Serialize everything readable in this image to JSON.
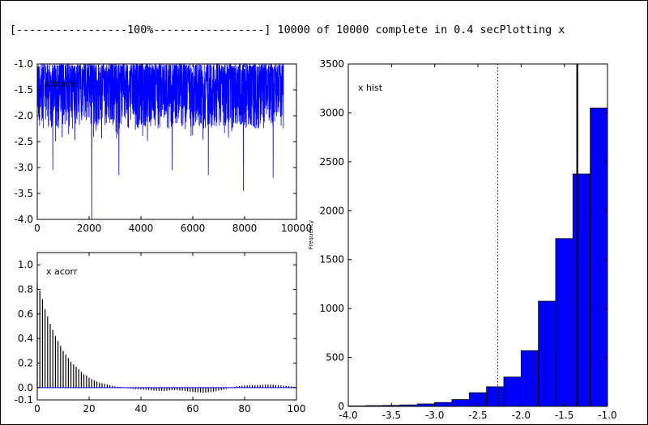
{
  "console": {
    "text": "[-----------------100%-----------------] 10000 of 10000 complete in 0.4 secPlotting x"
  },
  "chart_data": [
    {
      "type": "line",
      "panel": "trace",
      "annotation": "x trace",
      "xlim": [
        0,
        10000
      ],
      "ylim": [
        -4.0,
        -1.0
      ],
      "xticks": [
        "0",
        "2000",
        "4000",
        "6000",
        "8000",
        "10000"
      ],
      "yticks": [
        "-1.0",
        "-1.5",
        "-2.0",
        "-2.5",
        "-3.0",
        "-3.5",
        "-4.0"
      ],
      "series_color": "#0000ff",
      "n_samples": 9500,
      "y_range_observed": [
        -4.0,
        -1.0
      ],
      "notable_dips": [
        {
          "x": 600,
          "y": -3.05
        },
        {
          "x": 2100,
          "y": -4.0
        },
        {
          "x": 3150,
          "y": -3.15
        },
        {
          "x": 5200,
          "y": -3.05
        },
        {
          "x": 6600,
          "y": -3.15
        },
        {
          "x": 7950,
          "y": -3.45
        },
        {
          "x": 9100,
          "y": -3.2
        }
      ]
    },
    {
      "type": "bar",
      "panel": "autocorrelation",
      "annotation": "x acorr",
      "xlim": [
        0,
        100
      ],
      "ylim": [
        -0.1,
        1.1
      ],
      "xticks": [
        "0",
        "20",
        "40",
        "60",
        "80",
        "100"
      ],
      "yticks": [
        "1.0",
        "0.8",
        "0.6",
        "0.4",
        "0.2",
        "0.0",
        "-0.1"
      ],
      "lags": [
        0,
        1,
        2,
        3,
        4,
        5,
        6,
        7,
        8,
        9,
        10,
        11,
        12,
        13,
        14,
        15,
        16,
        17,
        18,
        19,
        20,
        21,
        22,
        23,
        24,
        25,
        26,
        27,
        28,
        29,
        30,
        31,
        32,
        33,
        34,
        35,
        36,
        37,
        38,
        39,
        40,
        41,
        42,
        43,
        44,
        45,
        46,
        47,
        48,
        49,
        50,
        51,
        52,
        53,
        54,
        55,
        56,
        57,
        58,
        59,
        60,
        61,
        62,
        63,
        64,
        65,
        66,
        67,
        68,
        69,
        70,
        71,
        72,
        73,
        74,
        75,
        76,
        77,
        78,
        79,
        80,
        81,
        82,
        83,
        84,
        85,
        86,
        87,
        88,
        89,
        90,
        91,
        92,
        93,
        94,
        95,
        96,
        97,
        98,
        99,
        100
      ],
      "values": [
        0.85,
        0.79,
        0.72,
        0.64,
        0.58,
        0.52,
        0.47,
        0.42,
        0.38,
        0.34,
        0.3,
        0.27,
        0.24,
        0.21,
        0.19,
        0.17,
        0.15,
        0.13,
        0.11,
        0.1,
        0.08,
        0.07,
        0.06,
        0.05,
        0.04,
        0.035,
        0.03,
        0.025,
        0.02,
        0.015,
        0.01,
        0.008,
        0.005,
        0.003,
        0.0,
        -0.005,
        -0.008,
        -0.01,
        -0.012,
        -0.014,
        -0.015,
        -0.016,
        -0.018,
        -0.02,
        -0.022,
        -0.024,
        -0.025,
        -0.026,
        -0.027,
        -0.028,
        -0.025,
        -0.022,
        -0.02,
        -0.02,
        -0.022,
        -0.024,
        -0.025,
        -0.027,
        -0.03,
        -0.033,
        -0.035,
        -0.037,
        -0.038,
        -0.04,
        -0.042,
        -0.04,
        -0.038,
        -0.036,
        -0.033,
        -0.03,
        -0.025,
        -0.02,
        -0.015,
        -0.01,
        -0.005,
        0.0,
        0.005,
        0.01,
        0.012,
        0.015,
        0.017,
        0.018,
        0.02,
        0.02,
        0.021,
        0.022,
        0.022,
        0.023,
        0.024,
        0.025,
        0.025,
        0.024,
        0.022,
        0.02,
        0.018,
        0.016,
        0.014,
        0.012,
        0.01,
        0.008,
        0.005
      ],
      "bar_color": "#000000",
      "baseline_color": "#0000ff"
    },
    {
      "type": "bar",
      "panel": "histogram",
      "annotation": "x hist",
      "ylabel": "Frequency",
      "xlim": [
        -4.0,
        -1.0
      ],
      "ylim": [
        0,
        3500
      ],
      "xticks": [
        "-4.0",
        "-3.5",
        "-3.0",
        "-2.5",
        "-2.0",
        "-1.5",
        "-1.0"
      ],
      "yticks": [
        "3500",
        "3000",
        "2500",
        "2000",
        "1500",
        "1000",
        "500",
        "0"
      ],
      "bin_edges": [
        -4.0,
        -3.8,
        -3.6,
        -3.4,
        -3.2,
        -3.0,
        -2.8,
        -2.6,
        -2.4,
        -2.2,
        -2.0,
        -1.8,
        -1.6,
        -1.4,
        -1.2,
        -1.0
      ],
      "counts": [
        5,
        8,
        10,
        15,
        25,
        40,
        70,
        140,
        200,
        300,
        570,
        1075,
        1715,
        2375,
        3050
      ],
      "bar_color": "#0000ff",
      "mean_line_x": -1.35,
      "interval_lines_x": [
        -2.27,
        -1.0
      ]
    }
  ]
}
